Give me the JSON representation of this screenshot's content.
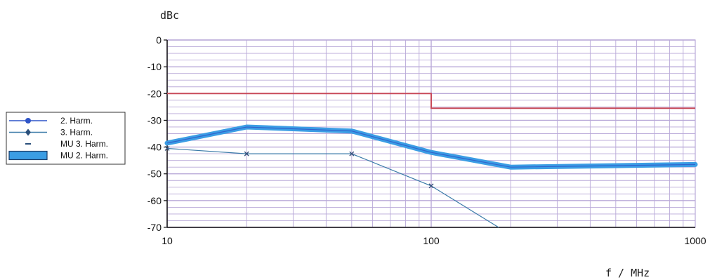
{
  "chart_data": {
    "type": "line",
    "title": "",
    "xlabel": "f  /  MHz",
    "ylabel": "dBc",
    "x_scale": "log",
    "xlim": [
      10,
      1000
    ],
    "ylim": [
      -70,
      0
    ],
    "x_ticks": [
      "10",
      "100",
      "1000"
    ],
    "y_ticks": [
      "0",
      "-10",
      "-20",
      "-30",
      "-40",
      "-50",
      "-60",
      "-70"
    ],
    "grid": true,
    "legend_position": "left",
    "series": [
      {
        "name": "2. Harm.",
        "x": [
          10,
          20,
          50,
          100,
          200,
          1000
        ],
        "y": [
          -38.5,
          -32.5,
          -34,
          -42,
          -47.5,
          -46.5
        ],
        "color": "#2f55c8",
        "marker": "circle"
      },
      {
        "name": "3. Harm.",
        "x": [
          10,
          20,
          50,
          100,
          180
        ],
        "y": [
          -40.5,
          -42.5,
          -42.5,
          -54.5,
          -70
        ],
        "color": "#3a7aa8",
        "marker": "diamond"
      },
      {
        "name": "MU 3. Harm.",
        "x": [
          10,
          100,
          100,
          1000
        ],
        "y": [
          -20,
          -20,
          -25.5,
          -25.5
        ],
        "color": "#c84a5a",
        "marker": "dash"
      },
      {
        "name": "MU 2. Harm.",
        "x": [
          10,
          20,
          50,
          100,
          200,
          1000
        ],
        "y": [
          -38.5,
          -32.5,
          -34,
          -42,
          -47.5,
          -46.5
        ],
        "color": "#3b9de4",
        "marker": "band"
      }
    ]
  }
}
